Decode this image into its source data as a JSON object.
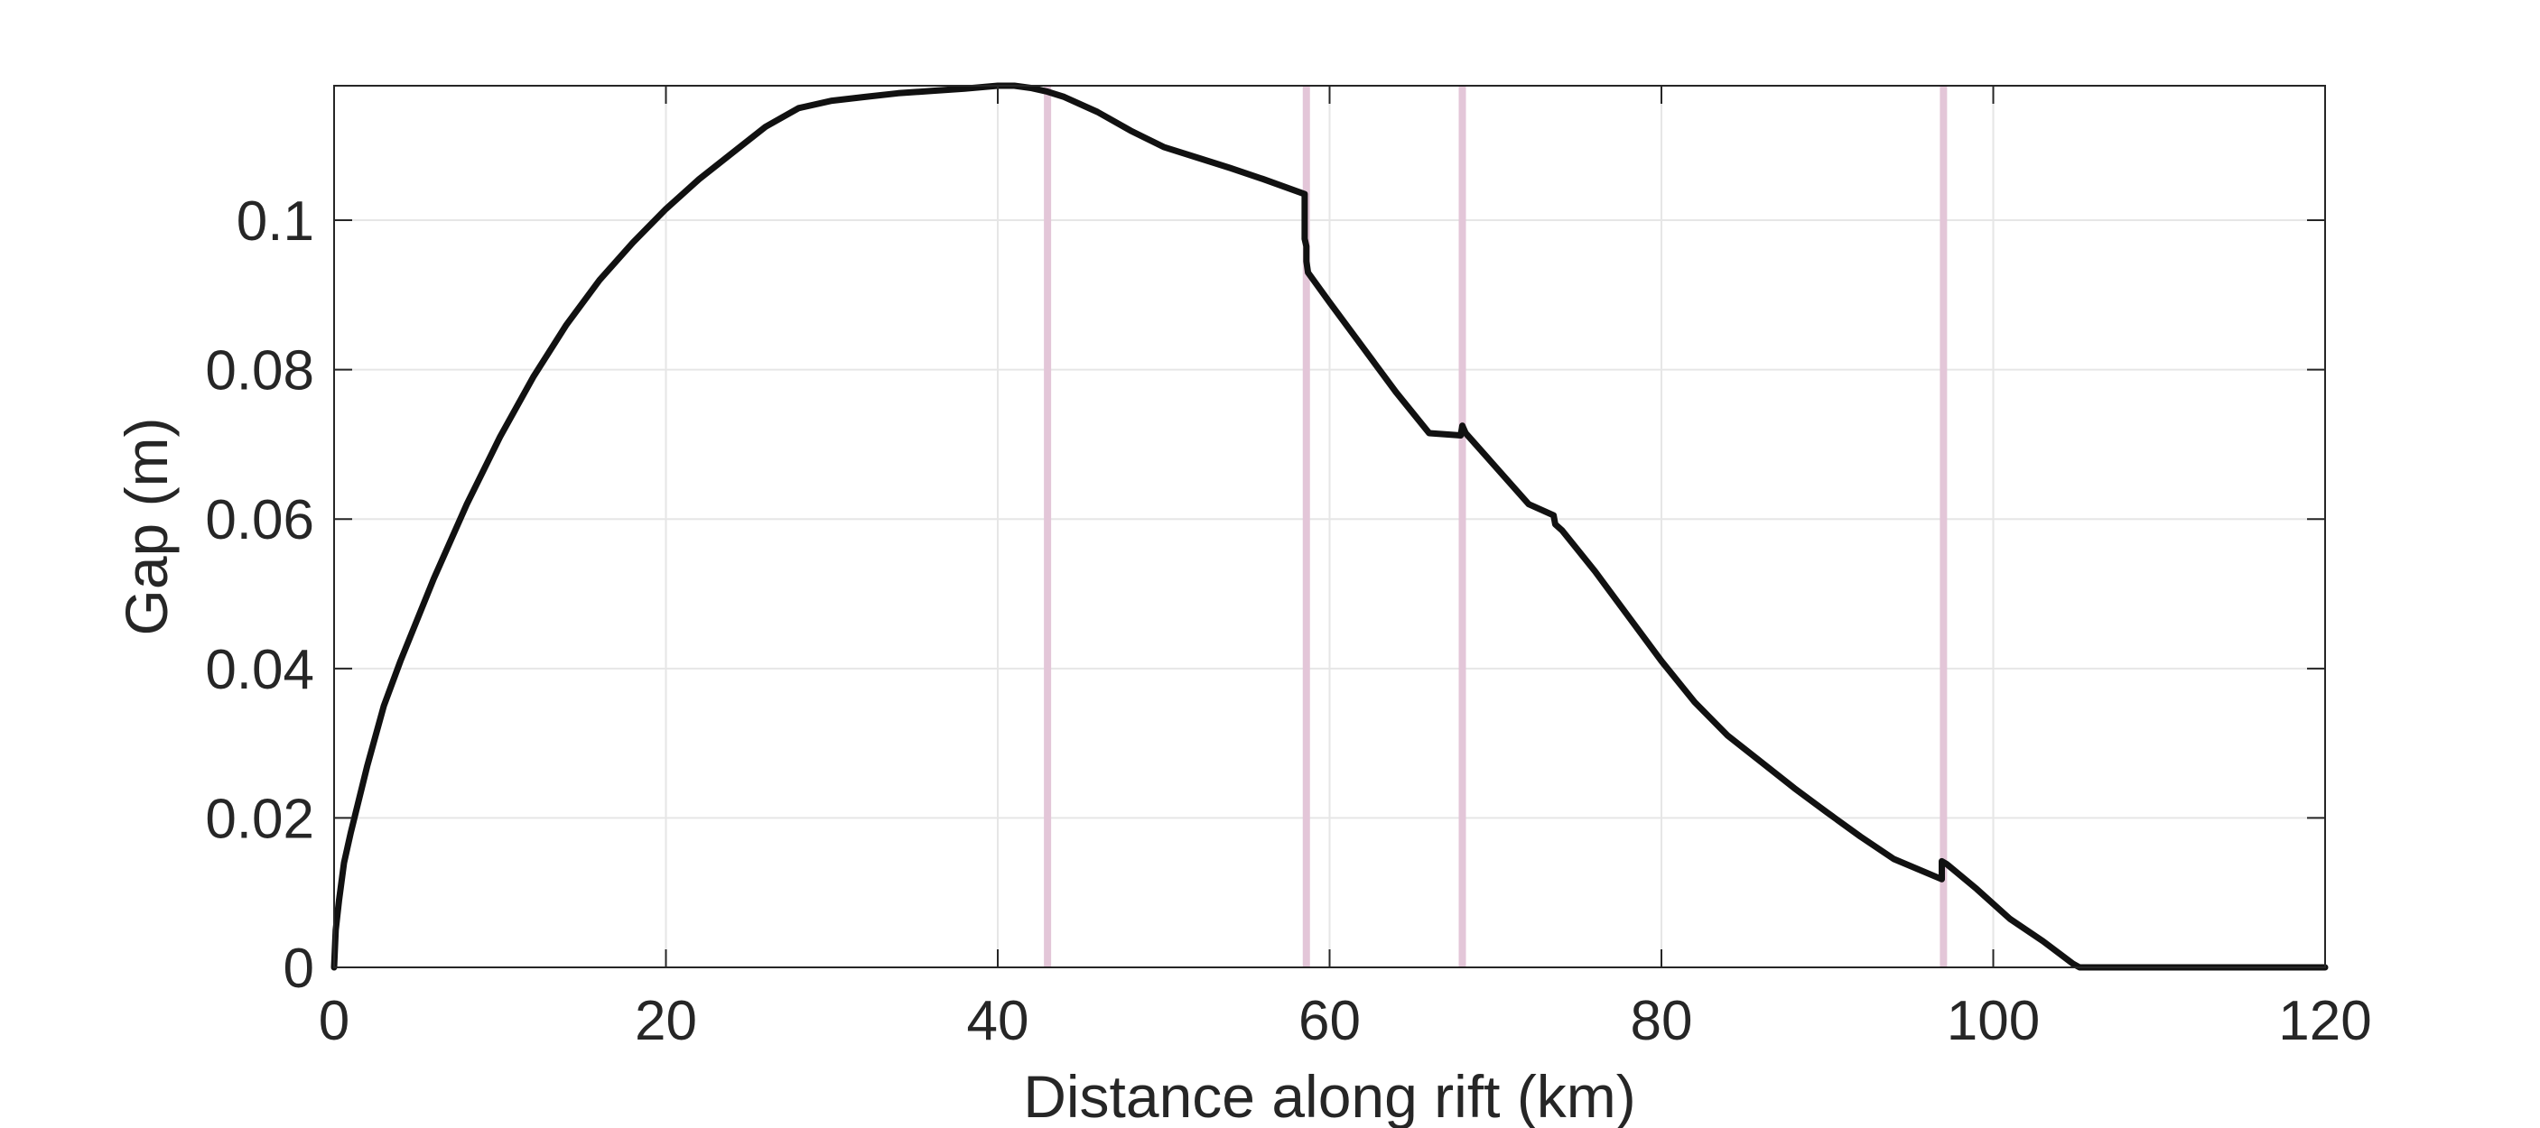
{
  "chart_data": {
    "type": "line",
    "title": "",
    "xlabel": "Distance along rift (km)",
    "ylabel": "Gap (m)",
    "xlim": [
      0,
      120
    ],
    "ylim": [
      0,
      0.118
    ],
    "x_ticks": [
      0,
      20,
      40,
      60,
      80,
      100,
      120
    ],
    "y_ticks": [
      0,
      0.02,
      0.04,
      0.06,
      0.08,
      0.1
    ],
    "x_tick_labels": [
      "0",
      "20",
      "40",
      "60",
      "80",
      "100",
      "120"
    ],
    "y_tick_labels": [
      "0",
      "0.02",
      "0.04",
      "0.06",
      "0.08",
      "0.1"
    ],
    "grid": true,
    "legend": "none",
    "colors": {
      "line": "#111111",
      "markers": "#e3c6d8",
      "grid": "#e6e6e6",
      "axes": "#262626"
    },
    "vertical_markers": [
      43,
      58.6,
      68,
      97
    ],
    "series": [
      {
        "x": [
          0,
          0.1,
          0.3,
          0.6,
          1,
          2,
          3,
          4,
          6,
          8,
          10,
          12,
          14,
          16,
          18,
          20,
          22,
          24,
          26,
          28,
          30,
          32,
          34,
          36,
          38,
          40,
          41,
          42,
          43,
          44,
          46,
          48,
          50,
          52,
          54,
          56,
          58.5,
          58.5,
          58.6,
          58.6,
          58.7,
          60,
          62,
          64,
          66,
          67.9,
          68,
          68.2,
          70,
          72,
          73.5,
          73.6,
          74,
          76,
          78,
          80,
          82,
          84,
          86,
          88,
          90,
          92,
          94,
          96.9,
          96.9,
          97.2,
          99,
          101,
          103,
          104.8,
          105.2,
          110,
          115,
          120
        ],
        "y": [
          0,
          0.005,
          0.009,
          0.014,
          0.018,
          0.027,
          0.035,
          0.041,
          0.052,
          0.062,
          0.071,
          0.079,
          0.086,
          0.092,
          0.097,
          0.1015,
          0.1055,
          0.109,
          0.1125,
          0.115,
          0.116,
          0.1165,
          0.117,
          0.1173,
          0.1176,
          0.118,
          0.118,
          0.1177,
          0.1172,
          0.1165,
          0.1145,
          0.112,
          0.1098,
          0.1084,
          0.107,
          0.1055,
          0.1035,
          0.0975,
          0.0965,
          0.0945,
          0.093,
          0.089,
          0.083,
          0.077,
          0.0715,
          0.0712,
          0.0725,
          0.0715,
          0.067,
          0.062,
          0.0605,
          0.0593,
          0.0585,
          0.053,
          0.047,
          0.041,
          0.0355,
          0.031,
          0.0275,
          0.024,
          0.0207,
          0.0175,
          0.0145,
          0.0118,
          0.0142,
          0.0138,
          0.0105,
          0.0065,
          0.0035,
          0.0005,
          0,
          0,
          0,
          0
        ]
      }
    ]
  }
}
